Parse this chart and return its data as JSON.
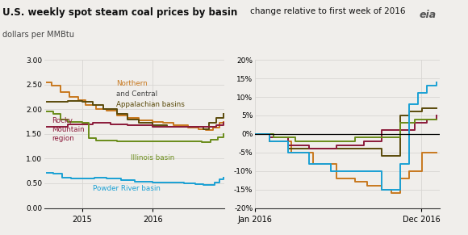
{
  "title_left": "U.S. weekly spot steam coal prices by basin",
  "subtitle_left": "dollars per MMBtu",
  "title_right": "change relative to first week of 2016",
  "colors": {
    "northern_app": "#c8781e",
    "central_app": "#5a4a0a",
    "rocky_mtn": "#8b1a3a",
    "illinois": "#6a8c1a",
    "powder_river": "#1aa0d4"
  },
  "bg_color": "#f0eeeb",
  "grid_color": "#d8d6d3",
  "left_ylim": [
    0.0,
    3.0
  ],
  "left_yticks": [
    0.0,
    0.5,
    1.0,
    1.5,
    2.0,
    2.5,
    3.0
  ],
  "right_ylim": [
    -0.2,
    0.2
  ],
  "right_yticks": [
    -0.2,
    -0.15,
    -0.1,
    -0.05,
    0.0,
    0.05,
    0.1,
    0.15,
    0.2
  ]
}
